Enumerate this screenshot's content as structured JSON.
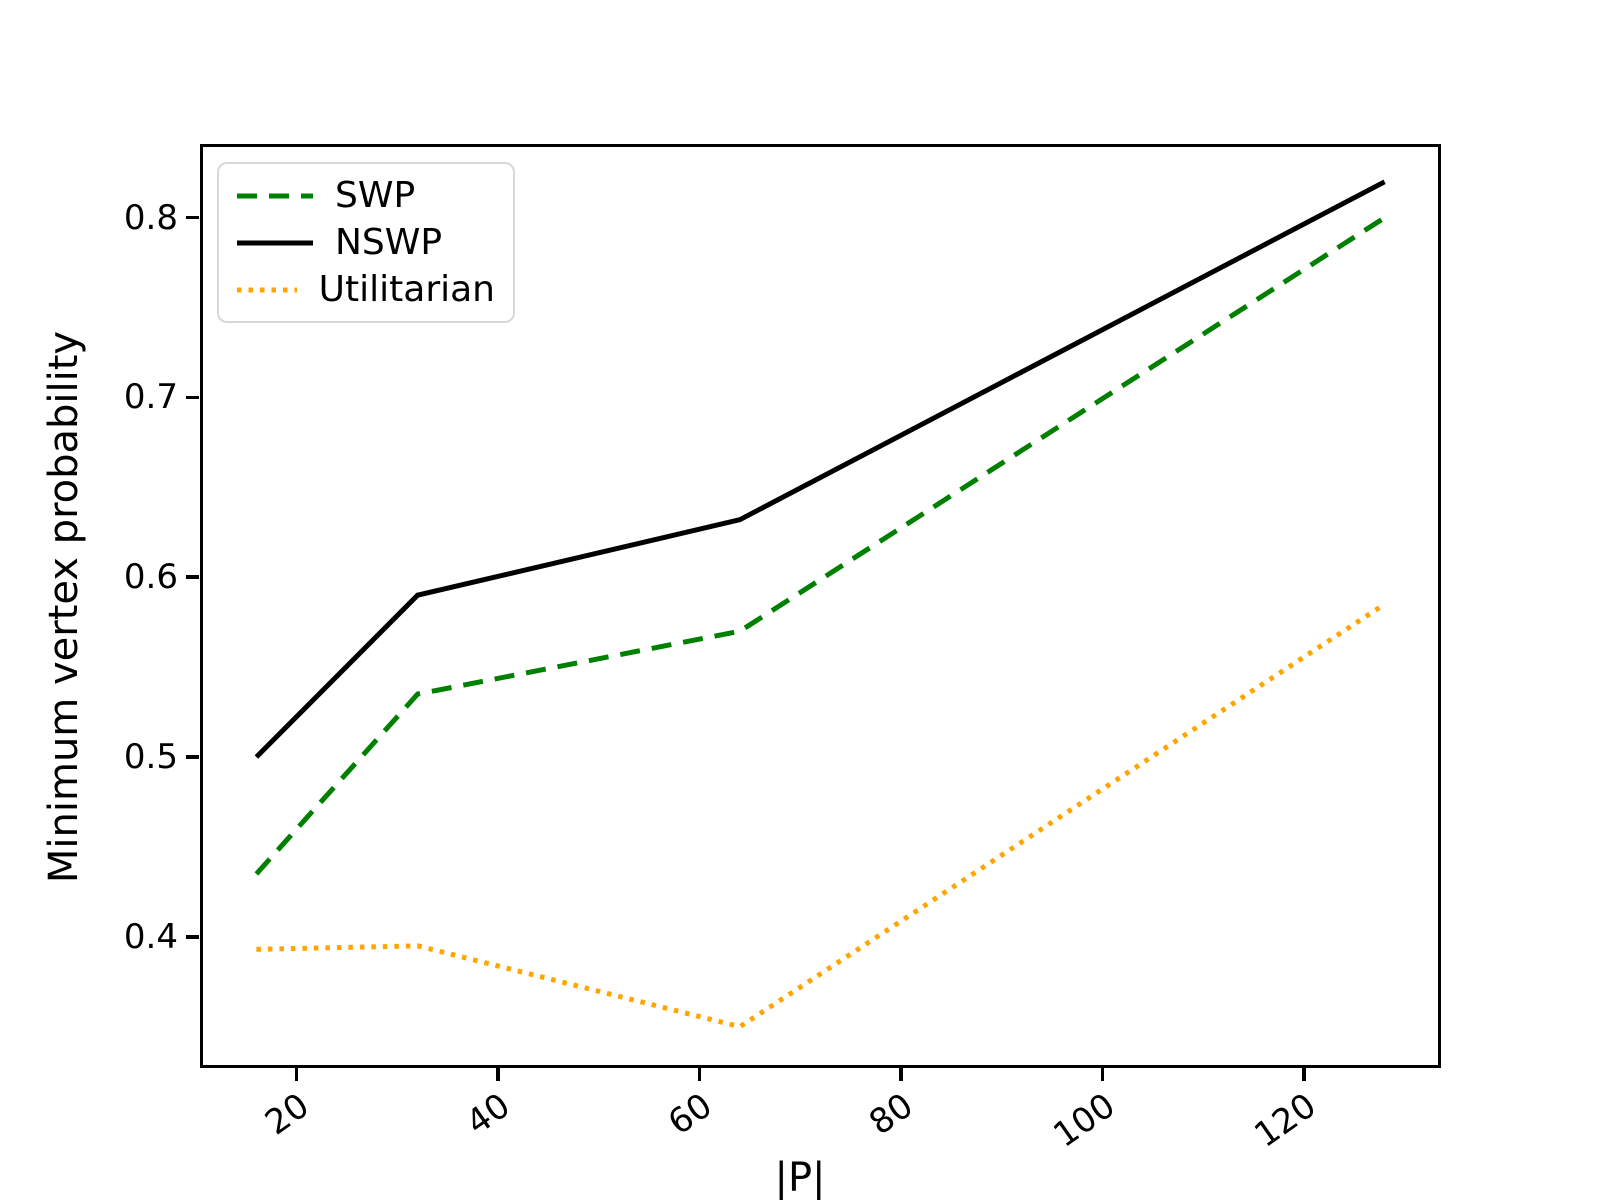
{
  "figure": {
    "background": "#ffffff"
  },
  "chart_data": {
    "type": "line",
    "title": "",
    "xlabel": "|P|",
    "ylabel": "Minimum vertex probability",
    "x": [
      16,
      32,
      64,
      128
    ],
    "series": [
      {
        "name": "SWP",
        "color": "#008000",
        "linestyle": "dashed",
        "values": [
          0.435,
          0.535,
          0.57,
          0.8
        ]
      },
      {
        "name": "NSWP",
        "color": "#000000",
        "linestyle": "solid",
        "values": [
          0.5,
          0.59,
          0.632,
          0.82
        ]
      },
      {
        "name": "Utilitarian",
        "color": "#ffa500",
        "linestyle": "dotted",
        "values": [
          0.393,
          0.395,
          0.35,
          0.585
        ]
      }
    ],
    "xticks": [
      20,
      40,
      60,
      80,
      100,
      120
    ],
    "yticks": [
      0.4,
      0.5,
      0.6,
      0.7,
      0.8
    ],
    "xlim": [
      10.4,
      133.6
    ],
    "ylim": [
      0.327,
      0.841
    ],
    "grid": false,
    "legend_position": "upper-left",
    "line_width": 5
  }
}
